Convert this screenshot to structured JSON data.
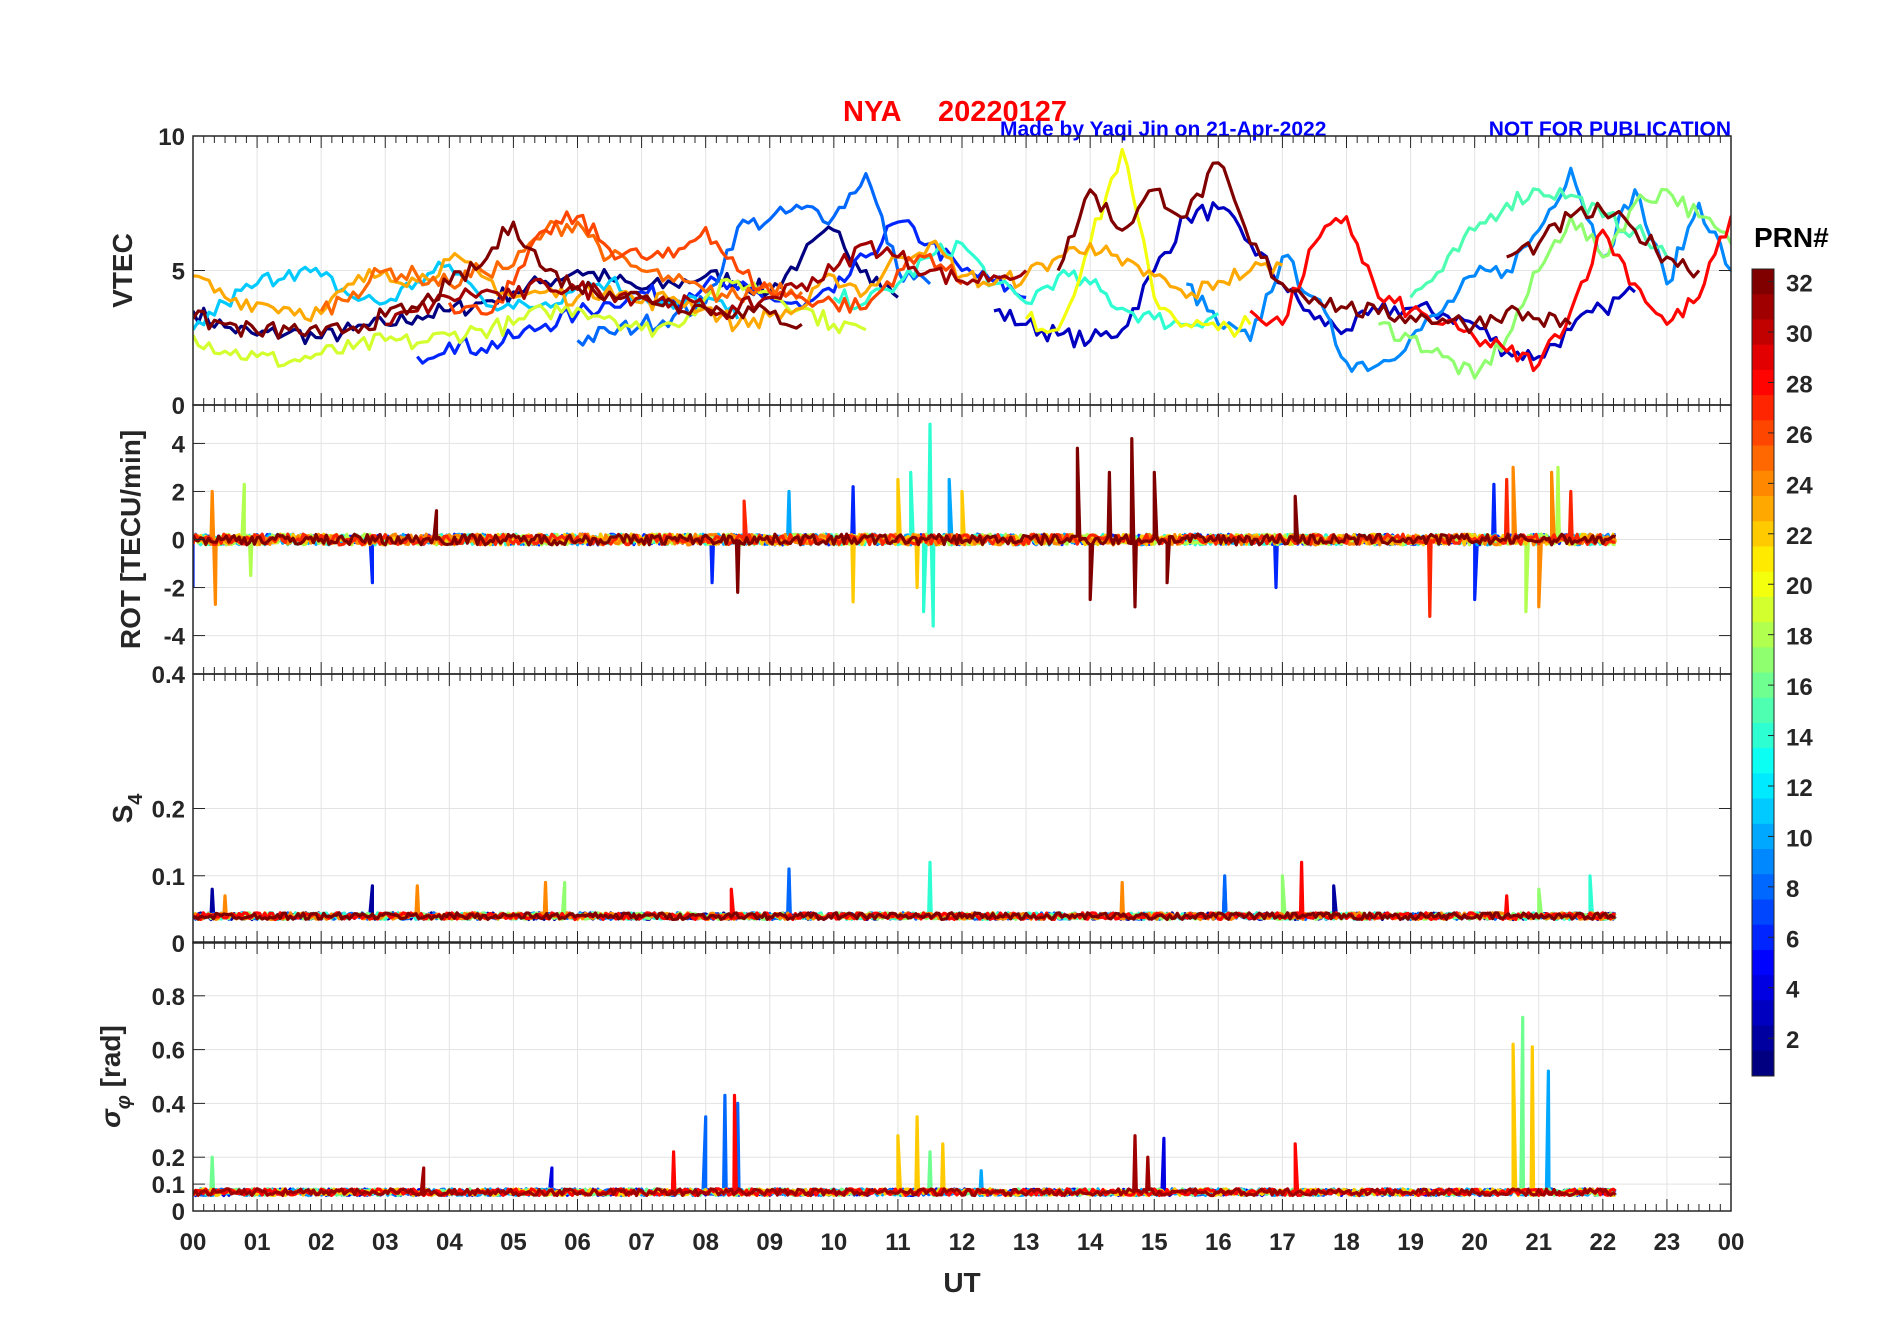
{
  "header": {
    "station": "NYA",
    "date": "20220127",
    "credit": "Made by Yaqi Jin on 21-Apr-2022",
    "notice": "NOT FOR PUBLICATION",
    "title_color": "#ff0000",
    "credit_color": "#0000ff"
  },
  "chart_data": {
    "type": "line",
    "xlabel": "UT",
    "x_tick_labels": [
      "00",
      "01",
      "02",
      "03",
      "04",
      "05",
      "06",
      "07",
      "08",
      "09",
      "10",
      "11",
      "12",
      "13",
      "14",
      "15",
      "16",
      "17",
      "18",
      "19",
      "20",
      "21",
      "22",
      "23",
      "00"
    ],
    "xlim": [
      0,
      24
    ],
    "colorbar": {
      "label": "PRN#",
      "range": [
        1,
        32
      ],
      "ticks": [
        "2",
        "4",
        "6",
        "8",
        "10",
        "12",
        "14",
        "16",
        "18",
        "20",
        "22",
        "24",
        "26",
        "28",
        "30",
        "32"
      ],
      "colormap": "jet"
    },
    "panels": [
      {
        "id": "vtec",
        "ylabel": "VTEC",
        "ylim": [
          0,
          10
        ],
        "yticks": [
          "0",
          "5",
          "10"
        ],
        "ytick_values": [
          0,
          5,
          10
        ],
        "step_hours": 0.5,
        "series": [
          {
            "prn": 1,
            "start": 0,
            "values": [
              3.5,
              2.9,
              2.6,
              2.7,
              2.5,
              2.8,
              3.0,
              3.3,
              3.5,
              3.8,
              4.2,
              4.6,
              5.0,
              4.7,
              4.3,
              4.5,
              4.8,
              4.6,
              4.2,
              5.5,
              6.5,
              5.0,
              4.0
            ]
          },
          {
            "prn": 3,
            "start": 12.5,
            "values": [
              3.5,
              3.0,
              2.6,
              2.4,
              2.8,
              5.0,
              7.0,
              7.3,
              6.0,
              4.5,
              3.2,
              2.8,
              3.5,
              3.6,
              3.4,
              3.0,
              2.0,
              1.8,
              2.8,
              3.6,
              4.2
            ]
          },
          {
            "prn": 6,
            "start": 3.5,
            "values": [
              1.8,
              2.3,
              2.1,
              2.5,
              3.0,
              3.4,
              3.8,
              4.2,
              3.9,
              4.5,
              4.3,
              4.0,
              3.6,
              4.2,
              5.5,
              6.8,
              6.0,
              5.0,
              4.6,
              4.0
            ]
          },
          {
            "prn": 8,
            "start": 6.0,
            "values": [
              2.4,
              2.7,
              3.0,
              3.3,
              3.8,
              6.6,
              6.9,
              7.3,
              7.0,
              8.6,
              5.0,
              4.5
            ]
          },
          {
            "prn": 9,
            "start": 15.5,
            "values": [
              4.5,
              3.0,
              2.4,
              5.5,
              4.0,
              1.6,
              1.5,
              2.5,
              3.5,
              4.8,
              5.0,
              6.5,
              8.8,
              5.5,
              8.0,
              4.5,
              7.5,
              5.0,
              3.5,
              2.0,
              2.5
            ]
          },
          {
            "prn": 11,
            "start": 0,
            "values": [
              2.8,
              3.8,
              4.5,
              5.0,
              4.8,
              4.0,
              3.8,
              4.6,
              5.2,
              4.0,
              3.6,
              3.8,
              4.4,
              4.6,
              4.0,
              3.6,
              4.0,
              3.2
            ]
          },
          {
            "prn": 14,
            "start": 10,
            "values": [
              4.0,
              3.8,
              4.5,
              5.5,
              6.0,
              4.5,
              3.8,
              4.8,
              4.5,
              3.6,
              3.2,
              3.0,
              3.4
            ]
          },
          {
            "prn": 15,
            "start": 19.0,
            "values": [
              4.0,
              5.0,
              6.5,
              7.5,
              8.0,
              7.8,
              7.0,
              6.5,
              5.5
            ]
          },
          {
            "prn": 17,
            "start": 18.5,
            "values": [
              3.0,
              2.5,
              1.8,
              1.0,
              2.5,
              5.0,
              7.0,
              5.5,
              7.5,
              8.0,
              7.0,
              6.0,
              5.5
            ]
          },
          {
            "prn": 19,
            "start": 0,
            "values": [
              2.6,
              2.0,
              1.8,
              1.6,
              1.9,
              2.1,
              2.4,
              2.3,
              2.6,
              2.8,
              3.0,
              3.5,
              3.6,
              3.3,
              2.8,
              3.0,
              4.0,
              4.6,
              4.2,
              3.6,
              3.0,
              2.8
            ]
          },
          {
            "prn": 20,
            "start": 13,
            "values": [
              3.2,
              2.8,
              6.0,
              9.5,
              4.0,
              3.0,
              2.8,
              3.0
            ]
          },
          {
            "prn": 23,
            "start": 0,
            "values": [
              4.8,
              4.0,
              3.8,
              3.6,
              3.4,
              4.5,
              5.0,
              4.6,
              5.4,
              4.8,
              4.0,
              4.2,
              4.0,
              4.4,
              3.8,
              4.0,
              3.6,
              3.0,
              3.3,
              3.6,
              4.8,
              4.2,
              5.5,
              6.0,
              4.8,
              4.5,
              4.8,
              5.5,
              6.0,
              5.2,
              4.8,
              4.0,
              4.6,
              5.0,
              5.2
            ]
          },
          {
            "prn": 25,
            "start": 2,
            "values": [
              3.5,
              4.2,
              5.0,
              4.8,
              4.5,
              5.0,
              5.2,
              6.5,
              6.8,
              5.5,
              5.0,
              4.6,
              4.2,
              4.0,
              4.5,
              4.2
            ]
          },
          {
            "prn": 26,
            "start": 4,
            "values": [
              3.8,
              3.4,
              4.5,
              6.5,
              7.0,
              5.8,
              5.5,
              5.5,
              6.6,
              5.0,
              4.2,
              4.0,
              3.8,
              3.6,
              5.0,
              5.6,
              4.5
            ]
          },
          {
            "prn": 28,
            "start": 16.5,
            "values": [
              3.5,
              3.0,
              6.0,
              7.0,
              4.0,
              3.5,
              3.0,
              2.5,
              2.0,
              1.5,
              3.5,
              6.5,
              4.5,
              3.0,
              4.0,
              7.0,
              6.0,
              4.0
            ]
          },
          {
            "prn": 31,
            "start": 3.0,
            "values": [
              3.0,
              3.5,
              4.0,
              4.2,
              4.0,
              4.5,
              4.3,
              4.2,
              4.0,
              3.8,
              3.6,
              3.5,
              4.0,
              4.5,
              5.0,
              6.0,
              5.5,
              5.0,
              4.6,
              4.8,
              5.0
            ]
          },
          {
            "prn": 32,
            "start": 0,
            "values": [
              3.2,
              3.0,
              2.7,
              2.8,
              2.6,
              2.9,
              3.3,
              3.6,
              4.5,
              5.2,
              6.8,
              5.0,
              4.4,
              4.2,
              4.0,
              3.8,
              3.6,
              3.5,
              3.4,
              3.0
            ]
          },
          {
            "prn": 32,
            "start": 13.5,
            "values": [
              5.0,
              8.0,
              6.5,
              8.0,
              7.0,
              9.0,
              6.0,
              4.5,
              4.0,
              3.6,
              3.4,
              3.3,
              3.2,
              3.0,
              3.5,
              3.2,
              3.0
            ]
          },
          {
            "prn": 32,
            "start": 20.5,
            "values": [
              5.5,
              6.0,
              7.0,
              7.2,
              6.5,
              5.5,
              5.0
            ]
          }
        ]
      },
      {
        "id": "rot",
        "ylabel": "ROT [TECU/min]",
        "ylim": [
          -5.6,
          5.6
        ],
        "yticks": [
          "-4",
          "-2",
          "0",
          "2",
          "4"
        ],
        "ytick_values": [
          -4,
          -2,
          0,
          2,
          4
        ],
        "baseline": 0,
        "series": [
          {
            "prn": 6,
            "start": 0,
            "end": 22.2,
            "spikes": [
              [
                0,
                -2.0
              ],
              [
                2.8,
                -1.8
              ],
              [
                8.1,
                -1.8
              ],
              [
                10.3,
                2.2
              ],
              [
                16.9,
                -2.0
              ],
              [
                20.0,
                -2.5
              ],
              [
                20.3,
                2.3
              ]
            ]
          },
          {
            "prn": 10,
            "start": 0,
            "end": 22.2,
            "spikes": [
              [
                9.3,
                2.0
              ],
              [
                11.8,
                2.5
              ]
            ]
          },
          {
            "prn": 14,
            "start": 0,
            "end": 22.2,
            "spikes": [
              [
                11.2,
                2.8
              ],
              [
                11.4,
                -3.0
              ],
              [
                11.5,
                4.8
              ],
              [
                11.55,
                -3.6
              ]
            ]
          },
          {
            "prn": 18,
            "start": 0,
            "end": 22.2,
            "spikes": [
              [
                0.8,
                2.3
              ],
              [
                0.9,
                -1.5
              ],
              [
                20.8,
                -3.0
              ],
              [
                21.3,
                3.0
              ]
            ]
          },
          {
            "prn": 22,
            "start": 0,
            "end": 22.2,
            "spikes": [
              [
                10.3,
                -2.6
              ],
              [
                11.0,
                2.5
              ],
              [
                11.3,
                -2.0
              ],
              [
                12.0,
                2.0
              ]
            ]
          },
          {
            "prn": 24,
            "start": 0,
            "end": 22.2,
            "spikes": [
              [
                0.3,
                2.0
              ],
              [
                0.35,
                -2.7
              ],
              [
                20.6,
                3.0
              ],
              [
                21.0,
                -2.8
              ],
              [
                21.2,
                2.8
              ]
            ]
          },
          {
            "prn": 27,
            "start": 0,
            "end": 22.2,
            "spikes": [
              [
                8.6,
                1.6
              ],
              [
                19.3,
                -3.2
              ],
              [
                20.5,
                2.5
              ],
              [
                21.5,
                2.0
              ]
            ]
          },
          {
            "prn": 32,
            "start": 0,
            "end": 22.2,
            "spikes": [
              [
                3.8,
                1.2
              ],
              [
                8.5,
                -2.2
              ],
              [
                13.8,
                3.8
              ],
              [
                14.0,
                -2.5
              ],
              [
                14.3,
                2.8
              ],
              [
                14.65,
                4.2
              ],
              [
                14.7,
                -2.8
              ],
              [
                15.0,
                2.8
              ],
              [
                15.2,
                -1.8
              ],
              [
                17.2,
                1.8
              ]
            ]
          }
        ]
      },
      {
        "id": "s4",
        "ylabel": "S",
        "ylabel_sub": "4",
        "ylim": [
          0,
          0.4
        ],
        "yticks": [
          "0",
          "0.1",
          "0.2",
          "0.4"
        ],
        "ytick_values": [
          0,
          0.1,
          0.2,
          0.4
        ],
        "baseline": 0.04,
        "series": [
          {
            "prn": 2,
            "start": 0,
            "end": 22.2,
            "spikes": [
              [
                0.3,
                0.08
              ],
              [
                2.8,
                0.085
              ],
              [
                16.1,
                0.09
              ],
              [
                17.8,
                0.085
              ]
            ]
          },
          {
            "prn": 8,
            "start": 0,
            "end": 22.2,
            "spikes": [
              [
                9.3,
                0.11
              ],
              [
                16.1,
                0.1
              ]
            ]
          },
          {
            "prn": 14,
            "start": 0,
            "end": 22.2,
            "spikes": [
              [
                11.5,
                0.12
              ],
              [
                21.8,
                0.1
              ]
            ]
          },
          {
            "prn": 17,
            "start": 0,
            "end": 22.2,
            "spikes": [
              [
                5.8,
                0.09
              ],
              [
                17.0,
                0.1
              ],
              [
                21.0,
                0.08
              ]
            ]
          },
          {
            "prn": 24,
            "start": 0,
            "end": 22.2,
            "spikes": [
              [
                0.5,
                0.07
              ],
              [
                3.5,
                0.085
              ],
              [
                5.5,
                0.09
              ],
              [
                14.5,
                0.09
              ]
            ]
          },
          {
            "prn": 28,
            "start": 0,
            "end": 22.2,
            "spikes": [
              [
                8.4,
                0.08
              ],
              [
                17.3,
                0.12
              ],
              [
                20.5,
                0.07
              ]
            ]
          },
          {
            "prn": 32,
            "start": 0,
            "end": 22.2,
            "spikes": []
          }
        ]
      },
      {
        "id": "sigma",
        "ylabel": "σ",
        "ylabel_sub": "φ",
        "ylabel_suffix": " [rad]",
        "ylim": [
          0,
          1.0
        ],
        "yticks": [
          "0",
          "0.1",
          "0.2",
          "0.4",
          "0.6",
          "0.8"
        ],
        "ytick_values": [
          0,
          0.1,
          0.2,
          0.4,
          0.6,
          0.8
        ],
        "baseline": 0.07,
        "series": [
          {
            "prn": 4,
            "start": 0,
            "end": 22.2,
            "spikes": [
              [
                5.6,
                0.16
              ],
              [
                15.15,
                0.27
              ]
            ]
          },
          {
            "prn": 8,
            "start": 0,
            "end": 22.2,
            "spikes": [
              [
                8.0,
                0.35
              ],
              [
                8.3,
                0.43
              ],
              [
                8.5,
                0.4
              ]
            ]
          },
          {
            "prn": 10,
            "start": 0,
            "end": 22.2,
            "spikes": [
              [
                12.3,
                0.15
              ],
              [
                21.15,
                0.52
              ]
            ]
          },
          {
            "prn": 16,
            "start": 0,
            "end": 22.2,
            "spikes": [
              [
                0.3,
                0.2
              ],
              [
                11.5,
                0.22
              ],
              [
                20.75,
                0.72
              ]
            ]
          },
          {
            "prn": 22,
            "start": 0,
            "end": 22.2,
            "spikes": [
              [
                11.0,
                0.28
              ],
              [
                11.3,
                0.35
              ],
              [
                11.7,
                0.25
              ],
              [
                20.6,
                0.62
              ],
              [
                20.9,
                0.61
              ]
            ]
          },
          {
            "prn": 28,
            "start": 0,
            "end": 22.2,
            "spikes": [
              [
                7.5,
                0.22
              ],
              [
                8.45,
                0.43
              ],
              [
                17.2,
                0.25
              ]
            ]
          },
          {
            "prn": 31,
            "start": 0,
            "end": 22.2,
            "spikes": [
              [
                3.6,
                0.16
              ],
              [
                14.7,
                0.28
              ],
              [
                14.9,
                0.2
              ]
            ]
          }
        ]
      }
    ]
  }
}
